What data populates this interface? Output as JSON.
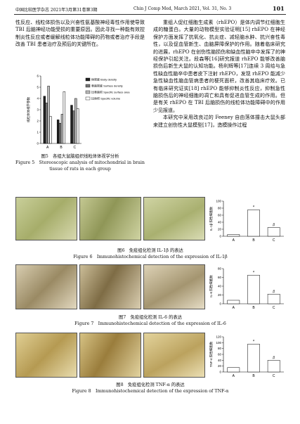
{
  "header": {
    "journal_cn": "中国比较医学杂志 2021年3月第31卷第3期",
    "journal_en": "Chin J Comp Med, March 2021, Vol. 31, No. 3",
    "page": "101"
  },
  "left_text": [
    "性反应、线粒体损伤以及兴奋性氨基酸神经毒性作用使导致 TBI 后脑神经功能受损的重要原因。因此寻找一种能有效控制炎性反应或者缓解线粒体功能障碍的药物或者治疗手段是改善 TBI 患者治疗及预后的关键所在。"
  ],
  "right_text": [
    "重组人促红细胞生成素（rhEPO）是体内调节红细胞生成的糖蛋白。大量的动物模型实验证明[15] rhEPO 在神经保护方面发挥了抗氧化、抗炎症、减轻脑水肿、抗兴奋性毒性，以及促血管新生、血脑屏障保护的作用。随着临床研究的进展，rhEPO 在创伤性脑损伤和缺血性脑卒中发挥了的神经保护引起关注。段森等[16]研究报道 rhEPO 能够改善脑损伤后新生大鼠的认知功能。杨利辉等[17]连续 3 周给与急性缺血性脑卒中患者皮下注射 rhEPO，发现 rhEPO 能减少急性缺血性脑血管病患者的梗死面积，改善其临床疗效。已有临床研究证实[18] rhEPO 能够抑制炎性反应，抑制急性脑损伤后的神经细胞的凋亡和具有促进血管生成的作用。但是有关 rhEPO 在 TBI 后脑损伤的线粒体功能障碍中的作用少见报道。",
    "本研究中采用改良过的 Feeney 自由落体撞击大鼠头部来建立创伤性大鼠模型[17]，造模操作过程"
  ],
  "figures": [
    {
      "caption_cn": "图5　各组大鼠脑组织线粒体体视学分析",
      "caption_en": "Figure 5　Stereoscopic analysis of mitochondrial in brain tissue of rats in each group",
      "chart": {
        "type": "bar",
        "y_label": "线粒体体视学参数",
        "categories": [
          "A",
          "B",
          "C"
        ],
        "legend": "right",
        "series": [
          {
            "name": "体密度 Body density",
            "color": "#222222",
            "values": [
              4.2,
              2.1,
              3.4
            ]
          },
          {
            "name": "表面密度 Surface density",
            "color": "#777777",
            "values": [
              3.6,
              1.8,
              2.9
            ]
          },
          {
            "name": "比表面积 Specific surface area",
            "color": "#bbbbbb",
            "values": [
              5.1,
              2.6,
              4.0
            ]
          },
          {
            "name": "比体积 Specific volume",
            "color": "#ffffff",
            "values": [
              2.4,
              4.6,
              3.1
            ]
          }
        ],
        "ylim": [
          0,
          6
        ],
        "yticks": [
          0,
          1,
          2,
          3,
          4,
          5,
          6
        ]
      }
    },
    {
      "caption_cn": "图6　免疫组化检测 IL-1β 的表达",
      "caption_en": "Figure 6　Immunohistochemical detection of the expression of IL-1β",
      "chart": {
        "type": "bar",
        "y_label": "IL-1β 阳性细胞数",
        "categories": [
          "A",
          "B",
          "C"
        ],
        "marks": [
          null,
          "*",
          "#"
        ],
        "series": [
          {
            "name": "IL-1β",
            "color": "#ffffff",
            "values": [
              5,
              75,
              25
            ]
          }
        ],
        "ylim": [
          0,
          100
        ],
        "yticks": [
          0,
          20,
          40,
          60,
          80,
          100
        ]
      }
    },
    {
      "caption_cn": "图7　免疫组化检测 IL-6 的表达",
      "caption_en": "Figure 7　Immunohistochemical detection of the expression of IL-6",
      "chart": {
        "type": "bar",
        "y_label": "IL-6 阳性细胞数",
        "categories": [
          "A",
          "B",
          "C"
        ],
        "marks": [
          null,
          "*",
          "#"
        ],
        "series": [
          {
            "name": "IL-6",
            "color": "#ffffff",
            "values": [
              8,
              65,
              22
            ]
          }
        ],
        "ylim": [
          0,
          80
        ],
        "yticks": [
          0,
          20,
          40,
          60,
          80
        ]
      }
    },
    {
      "caption_cn": "图8　免疫组化检测 TNF-α 的表达",
      "caption_en": "Figure 8　Immunohistochemical detection of the expression of TNF-α",
      "chart": {
        "type": "bar",
        "y_label": "TNF-α 阳性细胞数",
        "categories": [
          "A",
          "B",
          "C"
        ],
        "marks": [
          null,
          "*",
          "#"
        ],
        "series": [
          {
            "name": "TNF-α",
            "color": "#ffffff",
            "values": [
              15,
              95,
              40
            ]
          }
        ],
        "ylim": [
          0,
          120
        ],
        "yticks": [
          0,
          20,
          40,
          60,
          80,
          100,
          120
        ]
      }
    }
  ]
}
